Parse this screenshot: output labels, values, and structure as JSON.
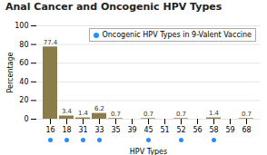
{
  "chart_data": {
    "type": "bar",
    "title": "Anal Cancer and Oncogenic HPV Types",
    "xlabel": "HPV Types",
    "ylabel": "Percentage",
    "categories": [
      "16",
      "18",
      "31",
      "33",
      "35",
      "39",
      "45",
      "51",
      "52",
      "56",
      "58",
      "59",
      "68"
    ],
    "values": [
      77.4,
      3.4,
      1.4,
      6.2,
      0.7,
      0,
      0.7,
      0,
      0.7,
      0,
      1.4,
      0,
      0.7
    ],
    "value_labels": [
      "77.4",
      "3.4",
      "1.4",
      "6.2",
      "0.7",
      null,
      "0.7",
      null,
      "0.7",
      null,
      "1.4",
      null,
      "0.7"
    ],
    "data_labels": true,
    "color": "#8B7D4A",
    "ylim": [
      0,
      100
    ],
    "yticks": [
      0,
      20,
      40,
      60,
      80,
      100
    ],
    "grid": true,
    "legend": "upper right",
    "vaccine": {
      "name": "Oncogenic HPV Types in 9-Valent Vaccine",
      "color": "#1E90FF",
      "marker": "circle",
      "values": [
        true,
        true,
        true,
        true,
        false,
        false,
        true,
        false,
        true,
        false,
        true,
        false,
        false
      ]
    }
  }
}
